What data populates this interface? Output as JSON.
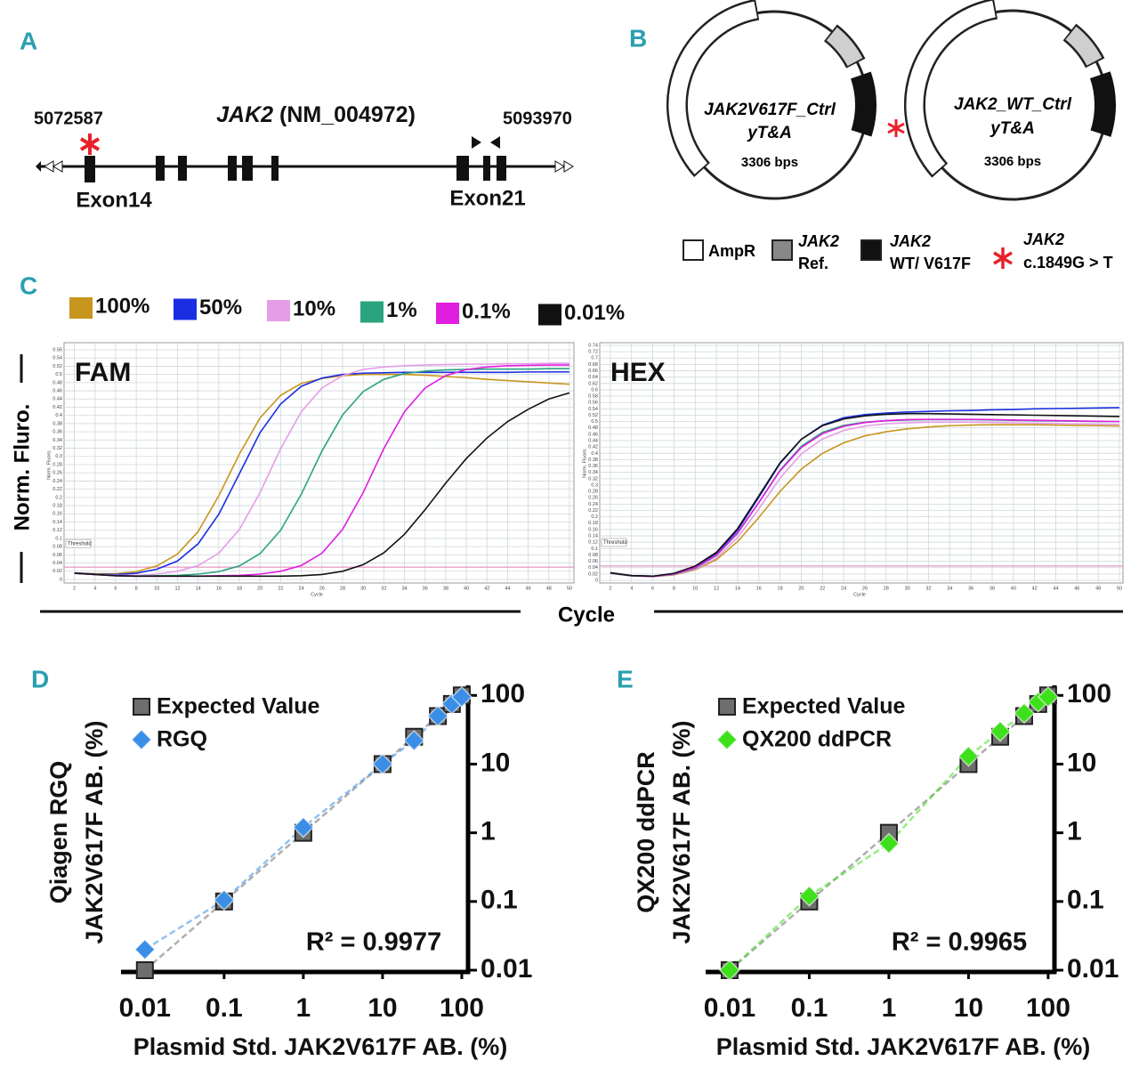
{
  "panel_labels": [
    "A",
    "B",
    "C",
    "D",
    "E"
  ],
  "gene_map": {
    "gene": "JAK2",
    "accession": "(NM_004972)",
    "start": "5072587",
    "end": "5093970",
    "exon_labels": [
      "Exon14",
      "Exon21"
    ]
  },
  "plasmid_map": {
    "plasmids": [
      {
        "name": "JAK2V617F_Ctrl",
        "insert": "yT&A",
        "size": "3306 bps"
      },
      {
        "name": "JAK2_WT_Ctrl",
        "insert": "yT&A",
        "size": "3306 bps"
      }
    ],
    "legend": [
      {
        "label": "AmpR"
      },
      {
        "label": "JAK2",
        "detail": "Ref."
      },
      {
        "label": "JAK2",
        "detail": "WT/ V617F"
      },
      {
        "label": "JAK2",
        "detail": "c.1849G > T"
      }
    ]
  },
  "qpcr_axes": {
    "y_label": "Norm. Fluro.",
    "x_label": "Cycle"
  },
  "chart_data": [
    {
      "type": "line",
      "title": "FAM",
      "x_label": "Cycle",
      "y_label": "Norm. Fluoro.",
      "threshold": 0.03,
      "threshold_label": "Threshold",
      "threshold_color": "#e8a0c8",
      "grid": true,
      "x": [
        2,
        4,
        6,
        8,
        10,
        12,
        14,
        16,
        18,
        20,
        22,
        24,
        26,
        28,
        30,
        32,
        34,
        36,
        38,
        40,
        42,
        44,
        46,
        48,
        50
      ],
      "xlim": [
        1,
        50
      ],
      "xticks": [
        2,
        4,
        6,
        8,
        10,
        12,
        14,
        16,
        18,
        20,
        22,
        24,
        26,
        28,
        30,
        32,
        34,
        36,
        38,
        40,
        42,
        44,
        46,
        48,
        50
      ],
      "ylim": [
        0,
        0.56
      ],
      "yticks": [
        0,
        0.02,
        0.04,
        0.06,
        0.08,
        0.1,
        0.12,
        0.14,
        0.16,
        0.18,
        0.2,
        0.22,
        0.24,
        0.26,
        0.28,
        0.3,
        0.32,
        0.34,
        0.36,
        0.38,
        0.4,
        0.42,
        0.44,
        0.46,
        0.48,
        0.5,
        0.52,
        0.54,
        0.56
      ],
      "series": [
        {
          "name": "100%",
          "color": "#c8961e",
          "values": [
            0.016,
            0.014,
            0.014,
            0.019,
            0.033,
            0.062,
            0.117,
            0.204,
            0.306,
            0.394,
            0.449,
            0.478,
            0.49,
            0.497,
            0.5,
            0.5,
            0.5,
            0.498,
            0.495,
            0.492,
            0.488,
            0.485,
            0.482,
            0.479,
            0.476
          ]
        },
        {
          "name": "50%",
          "color": "#1b2fe0",
          "values": [
            0.016,
            0.013,
            0.012,
            0.015,
            0.025,
            0.045,
            0.087,
            0.159,
            0.258,
            0.358,
            0.428,
            0.471,
            0.491,
            0.5,
            0.503,
            0.504,
            0.505,
            0.505,
            0.505,
            0.505,
            0.505,
            0.505,
            0.506,
            0.506,
            0.506
          ]
        },
        {
          "name": "10%",
          "color": "#e59de6",
          "values": [
            0.015,
            0.012,
            0.01,
            0.01,
            0.013,
            0.02,
            0.034,
            0.064,
            0.122,
            0.212,
            0.319,
            0.409,
            0.467,
            0.497,
            0.512,
            0.518,
            0.521,
            0.523,
            0.524,
            0.525,
            0.525,
            0.526,
            0.526,
            0.527,
            0.527
          ]
        },
        {
          "name": "1%",
          "color": "#2aa37e",
          "values": [
            0.015,
            0.012,
            0.009,
            0.008,
            0.009,
            0.01,
            0.013,
            0.019,
            0.033,
            0.063,
            0.12,
            0.208,
            0.313,
            0.401,
            0.458,
            0.488,
            0.502,
            0.508,
            0.511,
            0.512,
            0.513,
            0.513,
            0.513,
            0.514,
            0.514
          ]
        },
        {
          "name": "0.1%",
          "color": "#e01ee0",
          "values": [
            0.015,
            0.012,
            0.009,
            0.008,
            0.008,
            0.008,
            0.008,
            0.009,
            0.01,
            0.013,
            0.02,
            0.034,
            0.064,
            0.122,
            0.212,
            0.319,
            0.409,
            0.467,
            0.497,
            0.512,
            0.518,
            0.521,
            0.522,
            0.523,
            0.523
          ]
        },
        {
          "name": "0.01%",
          "color": "#111111",
          "values": [
            0.015,
            0.012,
            0.009,
            0.008,
            0.008,
            0.008,
            0.008,
            0.008,
            0.008,
            0.008,
            0.008,
            0.009,
            0.012,
            0.02,
            0.036,
            0.065,
            0.11,
            0.17,
            0.235,
            0.295,
            0.345,
            0.385,
            0.415,
            0.44,
            0.455
          ]
        }
      ]
    },
    {
      "type": "line",
      "title": "HEX",
      "x_label": "Cycle",
      "y_label": "Norm. Fluoro.",
      "threshold": 0.045,
      "threshold_label": "Threshold",
      "threshold_color": "#e8a0c8",
      "grid": true,
      "x": [
        2,
        4,
        6,
        8,
        10,
        12,
        14,
        16,
        18,
        20,
        22,
        24,
        26,
        28,
        30,
        32,
        34,
        36,
        38,
        40,
        42,
        44,
        46,
        48,
        50
      ],
      "xlim": [
        1,
        50
      ],
      "xticks": [
        2,
        4,
        6,
        8,
        10,
        12,
        14,
        16,
        18,
        20,
        22,
        24,
        26,
        28,
        30,
        32,
        34,
        36,
        38,
        40,
        42,
        44,
        46,
        48,
        50
      ],
      "ylim": [
        0,
        0.74
      ],
      "yticks": [
        0,
        0.02,
        0.04,
        0.06,
        0.08,
        0.1,
        0.12,
        0.14,
        0.16,
        0.18,
        0.2,
        0.22,
        0.24,
        0.26,
        0.28,
        0.3,
        0.32,
        0.34,
        0.36,
        0.38,
        0.4,
        0.42,
        0.44,
        0.46,
        0.48,
        0.5,
        0.52,
        0.54,
        0.56,
        0.58,
        0.6,
        0.62,
        0.64,
        0.66,
        0.68,
        0.7,
        0.72,
        0.74
      ],
      "series": [
        {
          "name": "100%",
          "color": "#c8961e",
          "values": [
            0.023,
            0.015,
            0.012,
            0.017,
            0.033,
            0.065,
            0.122,
            0.198,
            0.28,
            0.35,
            0.4,
            0.433,
            0.455,
            0.468,
            0.477,
            0.483,
            0.487,
            0.489,
            0.49,
            0.49,
            0.49,
            0.489,
            0.488,
            0.487,
            0.486
          ]
        },
        {
          "name": "50%",
          "color": "#1b2fe0",
          "values": [
            0.023,
            0.015,
            0.013,
            0.021,
            0.042,
            0.084,
            0.158,
            0.262,
            0.368,
            0.444,
            0.489,
            0.512,
            0.522,
            0.527,
            0.53,
            0.532,
            0.534,
            0.535,
            0.537,
            0.538,
            0.54,
            0.541,
            0.542,
            0.543,
            0.544
          ]
        },
        {
          "name": "10%",
          "color": "#e59de6",
          "values": [
            0.022,
            0.014,
            0.012,
            0.018,
            0.035,
            0.07,
            0.135,
            0.225,
            0.322,
            0.398,
            0.445,
            0.472,
            0.486,
            0.493,
            0.496,
            0.498,
            0.498,
            0.498,
            0.497,
            0.496,
            0.495,
            0.494,
            0.493,
            0.492,
            0.491
          ]
        },
        {
          "name": "1%",
          "color": "#2aa37e",
          "values": [
            0.022,
            0.014,
            0.012,
            0.019,
            0.038,
            0.078,
            0.148,
            0.245,
            0.347,
            0.422,
            0.466,
            0.488,
            0.498,
            0.503,
            0.505,
            0.506,
            0.506,
            0.506,
            0.505,
            0.504,
            0.503,
            0.502,
            0.501,
            0.5,
            0.5
          ]
        },
        {
          "name": "0.1%",
          "color": "#e01ee0",
          "values": [
            0.023,
            0.015,
            0.012,
            0.02,
            0.04,
            0.08,
            0.15,
            0.245,
            0.345,
            0.418,
            0.462,
            0.485,
            0.497,
            0.503,
            0.506,
            0.507,
            0.507,
            0.507,
            0.506,
            0.505,
            0.504,
            0.503,
            0.502,
            0.501,
            0.5
          ]
        },
        {
          "name": "0.01%",
          "color": "#111111",
          "values": [
            0.024,
            0.015,
            0.013,
            0.022,
            0.045,
            0.088,
            0.163,
            0.266,
            0.37,
            0.444,
            0.487,
            0.508,
            0.518,
            0.523,
            0.525,
            0.525,
            0.524,
            0.523,
            0.522,
            0.521,
            0.52,
            0.519,
            0.518,
            0.517,
            0.516
          ]
        }
      ]
    },
    {
      "type": "scatter",
      "log_scale": true,
      "legend": "upper left",
      "annotation": "R² = 0.9977",
      "x_label": "Plasmid Std. JAK2V617F AB. (%)",
      "y_label": [
        "Qiagen RGQ",
        "JAK2V617F AB. (%)"
      ],
      "xlim": [
        0.005,
        120
      ],
      "xticks": [
        0.01,
        0.1,
        1,
        10,
        100
      ],
      "ylim": [
        0.01,
        140
      ],
      "yticks": [
        0.01,
        0.1,
        1,
        10,
        100
      ],
      "series": [
        {
          "name": "Expected Value",
          "color": "#6e6e6e",
          "marker": "square",
          "x": [
            0.01,
            0.1,
            1,
            10,
            25,
            50,
            75,
            100
          ],
          "values": [
            0.01,
            0.1,
            1,
            10,
            25,
            50,
            75,
            100
          ]
        },
        {
          "name": "RGQ",
          "color": "#3a8ee6",
          "marker": "diamond",
          "x": [
            0.01,
            0.1,
            1,
            10,
            25,
            50,
            75,
            100
          ],
          "values": [
            0.02,
            0.105,
            1.2,
            10,
            22,
            50,
            75,
            95
          ]
        }
      ]
    },
    {
      "type": "scatter",
      "log_scale": true,
      "legend": "upper left",
      "annotation": "R² = 0.9965",
      "x_label": "Plasmid Std. JAK2V617F AB. (%)",
      "y_label": [
        "QX200 ddPCR",
        "JAK2V617F AB. (%)"
      ],
      "xlim": [
        0.005,
        120
      ],
      "xticks": [
        0.01,
        0.1,
        1,
        10,
        100
      ],
      "ylim": [
        0.01,
        140
      ],
      "yticks": [
        0.01,
        0.1,
        1,
        10,
        100
      ],
      "series": [
        {
          "name": "Expected Value",
          "color": "#6e6e6e",
          "marker": "square",
          "x": [
            0.01,
            0.1,
            1,
            10,
            25,
            50,
            75,
            100
          ],
          "values": [
            0.01,
            0.1,
            1,
            10,
            25,
            50,
            75,
            100
          ]
        },
        {
          "name": "QX200 ddPCR",
          "color": "#3ee01c",
          "marker": "diamond",
          "x": [
            0.01,
            0.1,
            1,
            10,
            25,
            50,
            75,
            100
          ],
          "values": [
            0.01,
            0.12,
            0.7,
            13,
            30,
            55,
            80,
            95
          ]
        }
      ]
    }
  ]
}
